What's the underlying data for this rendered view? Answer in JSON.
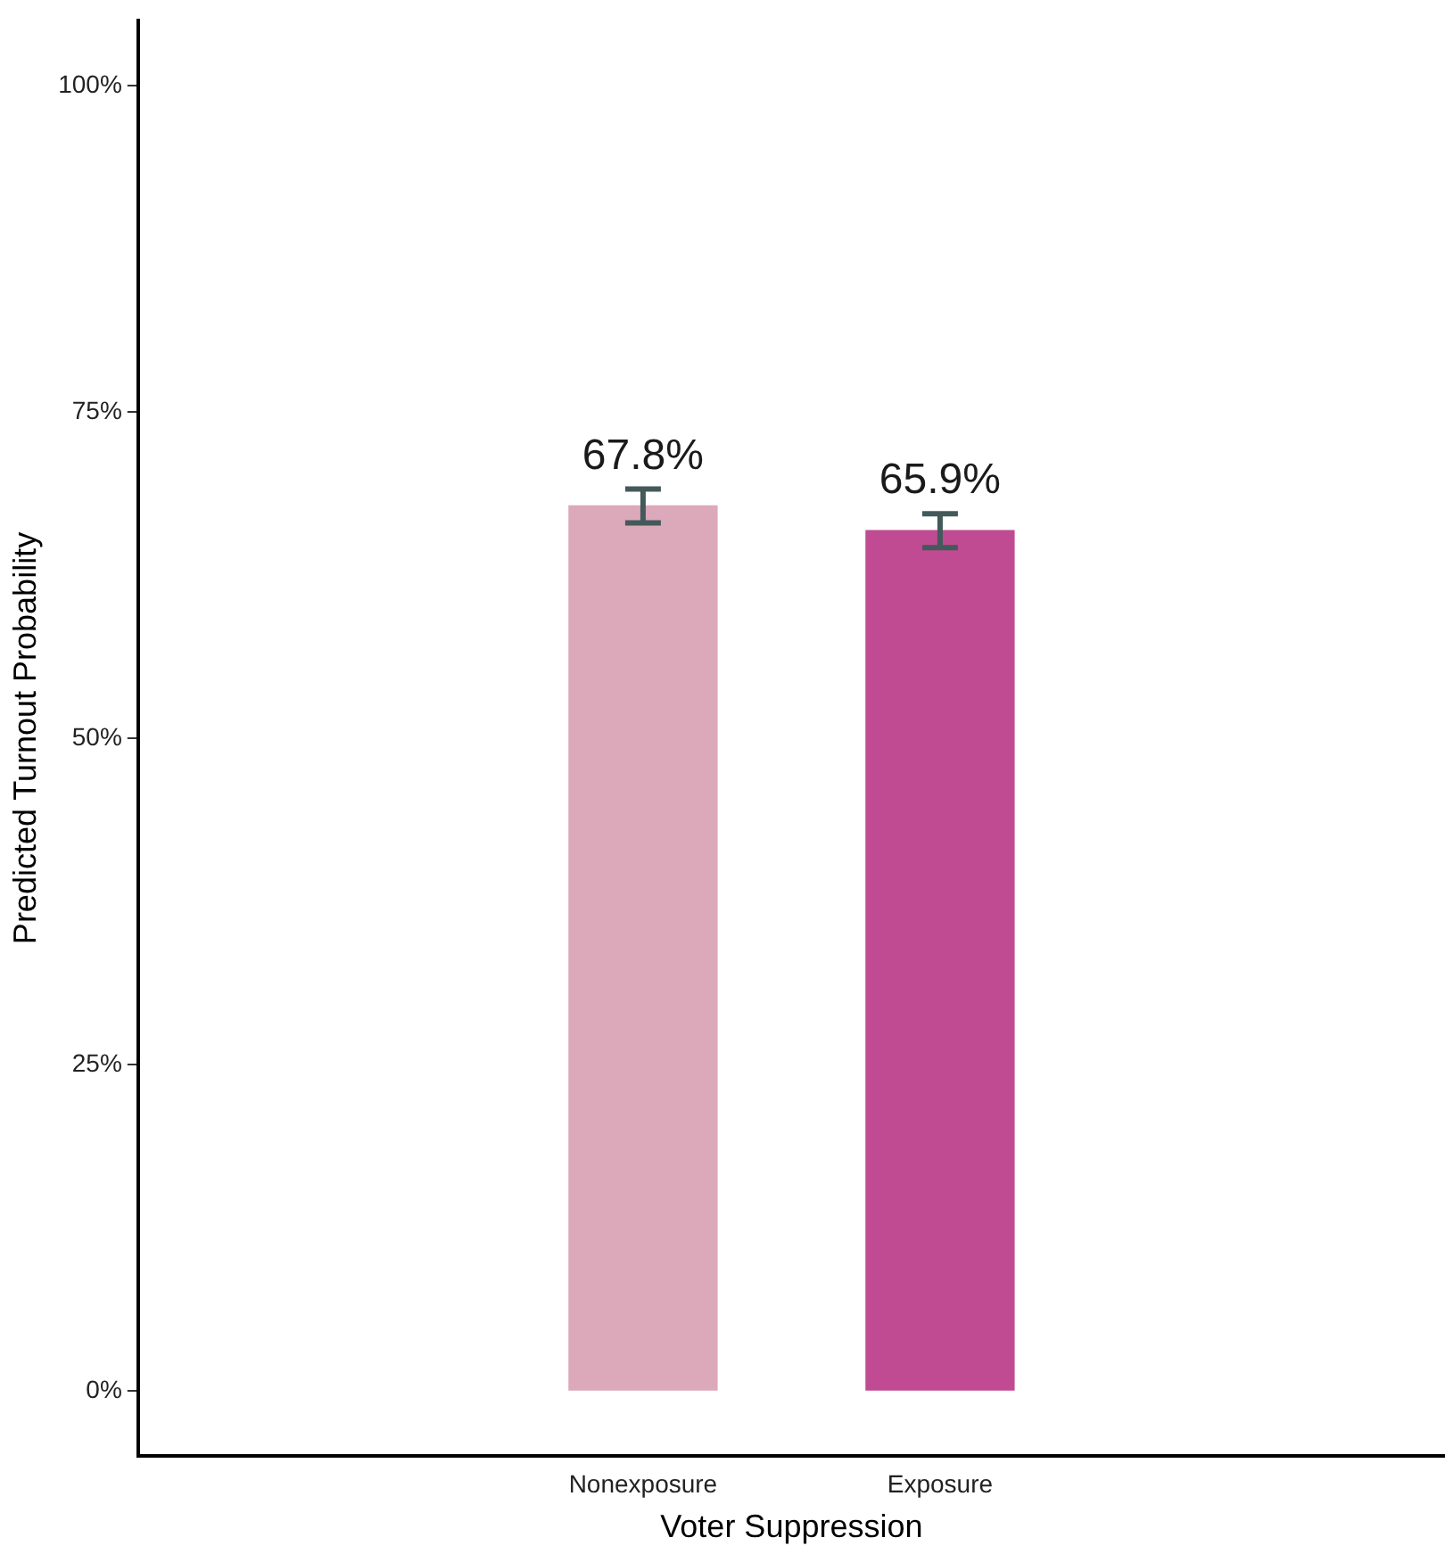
{
  "chart_data": {
    "type": "bar",
    "xlabel": "Voter Suppression",
    "ylabel": "Predicted Turnout Probability",
    "categories": [
      "Nonexposure",
      "Exposure"
    ],
    "values": [
      67.8,
      65.9
    ],
    "colors": [
      "#dba9b9",
      "#c04b93"
    ],
    "errors": [
      1.3,
      1.3
    ],
    "value_labels": [
      "67.8%",
      "65.9%"
    ],
    "ylim": [
      -5,
      105
    ],
    "yticks": [
      {
        "value": 0,
        "label": "0%"
      },
      {
        "value": 25,
        "label": "25%"
      },
      {
        "value": 50,
        "label": "50%"
      },
      {
        "value": 75,
        "label": "75%"
      },
      {
        "value": 100,
        "label": "100%"
      }
    ],
    "grid": false,
    "legend": false
  }
}
